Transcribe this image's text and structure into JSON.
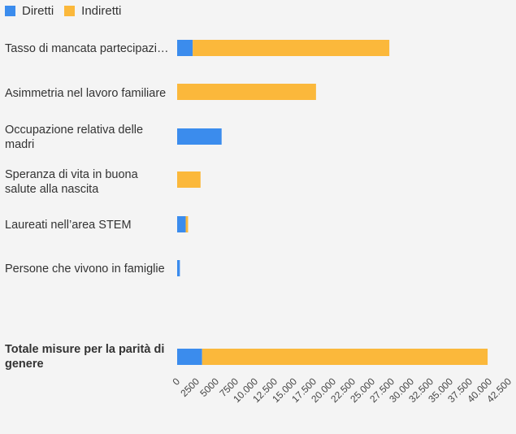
{
  "chart_data": {
    "type": "bar",
    "orientation": "horizontal",
    "stacked": true,
    "legend_position": "top-left",
    "categories": [
      "Tasso di mancata partecipazione al lavoro",
      "Asimmetria nel lavoro familiare",
      "Occupazione relativa delle madri",
      "Speranza di vita in buona salute alla nascita",
      "Laureati nell’area STEM",
      "Persone che vivono in famiglie",
      "Totale misure per la parità di genere"
    ],
    "bold_categories": [
      "Totale misure per la parità di genere"
    ],
    "series": [
      {
        "name": "Diretti",
        "color": "#3b8ced",
        "values": [
          2000,
          0,
          5700,
          0,
          1100,
          350,
          3200
        ]
      },
      {
        "name": "Indiretti",
        "color": "#fbb83b",
        "values": [
          25200,
          17800,
          0,
          3000,
          300,
          0,
          36600
        ]
      }
    ],
    "xlim": [
      0,
      42500
    ],
    "xticks": [
      0,
      2500,
      5000,
      7500,
      10000,
      12500,
      15000,
      17500,
      20000,
      22500,
      25000,
      27500,
      30000,
      32500,
      35000,
      37500,
      40000,
      42500
    ],
    "xtick_labels": [
      "0",
      "2500",
      "5000",
      "7500",
      "10.000",
      "12.500",
      "15.000",
      "17.500",
      "20.000",
      "22.500",
      "25.000",
      "27.500",
      "30.000",
      "32.500",
      "35.000",
      "37.500",
      "40.000",
      "42.500"
    ],
    "grid": false
  }
}
